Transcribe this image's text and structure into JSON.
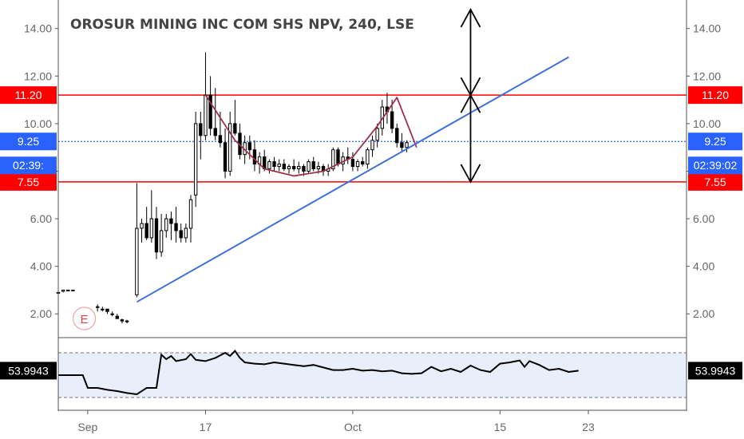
{
  "chart_data": {
    "type": "candlestick",
    "title": "OROSUR MINING INC COM SHS NPV, 240, LSE",
    "y_ticks": [
      "14.00",
      "12.00",
      "10.00",
      "8.00",
      "6.00",
      "4.00",
      "2.00"
    ],
    "y_tick_values": [
      14,
      12,
      10,
      8,
      6,
      4,
      2
    ],
    "ylim": [
      1.0,
      15.2
    ],
    "x_ticks": [
      "Sep",
      "17",
      "Oct",
      "15",
      "23"
    ],
    "x_tick_index": [
      3,
      15,
      30,
      45,
      54
    ],
    "x_range": [
      0,
      64
    ],
    "candles": [
      [
        0.0,
        2.9,
        3.0,
        2.8,
        2.9
      ],
      [
        0.5,
        2.95,
        3.0,
        2.9,
        3.0
      ],
      [
        1.0,
        3.0,
        3.0,
        3.0,
        3.0
      ],
      [
        1.5,
        3.0,
        3.0,
        3.0,
        3.0
      ],
      [
        4.0,
        2.3,
        2.4,
        2.1,
        2.3
      ],
      [
        4.5,
        2.2,
        2.3,
        2.1,
        2.2
      ],
      [
        5.0,
        2.2,
        2.2,
        2.0,
        2.1
      ],
      [
        5.5,
        2.0,
        2.1,
        1.9,
        2.0
      ],
      [
        6.0,
        1.9,
        2.0,
        1.8,
        1.8
      ],
      [
        6.5,
        1.75,
        1.8,
        1.6,
        1.7
      ],
      [
        7.0,
        1.7,
        1.75,
        1.6,
        1.7
      ],
      [
        8.0,
        2.8,
        7.5,
        2.7,
        5.6
      ],
      [
        8.5,
        5.6,
        6.0,
        5.0,
        5.8
      ],
      [
        9.0,
        5.8,
        6.5,
        5.1,
        5.2
      ],
      [
        9.5,
        5.2,
        7.2,
        5.0,
        6.0
      ],
      [
        10.0,
        6.0,
        6.5,
        4.3,
        4.6
      ],
      [
        10.5,
        4.6,
        6.2,
        4.4,
        5.5
      ],
      [
        11.0,
        5.5,
        6.2,
        5.2,
        6.0
      ],
      [
        11.5,
        6.0,
        6.3,
        5.1,
        5.8
      ],
      [
        12.0,
        5.8,
        6.5,
        5.0,
        5.5
      ],
      [
        12.5,
        5.5,
        5.8,
        5.0,
        5.2
      ],
      [
        13.0,
        5.2,
        5.8,
        5.0,
        5.6
      ],
      [
        13.5,
        5.6,
        7.0,
        5.0,
        6.8
      ],
      [
        14.0,
        7.0,
        10.5,
        6.5,
        10.0
      ],
      [
        14.5,
        10.0,
        10.5,
        8.5,
        9.5
      ],
      [
        15.0,
        9.5,
        13.0,
        9.3,
        11.2
      ],
      [
        15.5,
        11.2,
        12.0,
        9.5,
        9.8
      ],
      [
        16.0,
        9.8,
        11.5,
        9.3,
        9.5
      ],
      [
        16.5,
        9.5,
        10.5,
        9.0,
        9.2
      ],
      [
        17.0,
        9.2,
        9.8,
        7.7,
        8.0
      ],
      [
        17.5,
        8.0,
        10.5,
        7.8,
        10.0
      ],
      [
        18.0,
        10.0,
        11.0,
        9.5,
        9.6
      ],
      [
        18.5,
        9.6,
        10.0,
        8.5,
        8.7
      ],
      [
        19.0,
        8.7,
        9.5,
        8.3,
        9.2
      ],
      [
        19.5,
        9.2,
        9.5,
        8.5,
        8.9
      ],
      [
        20.0,
        8.9,
        9.3,
        8.0,
        8.3
      ],
      [
        20.5,
        8.3,
        8.8,
        7.9,
        8.6
      ],
      [
        21.0,
        8.6,
        8.9,
        8.0,
        8.1
      ],
      [
        21.5,
        8.1,
        8.5,
        7.9,
        8.4
      ],
      [
        22.0,
        8.4,
        8.6,
        8.0,
        8.2
      ],
      [
        22.5,
        8.2,
        8.5,
        8.0,
        8.3
      ],
      [
        23.0,
        8.3,
        8.5,
        8.0,
        8.1
      ],
      [
        23.5,
        8.1,
        8.3,
        7.9,
        8.2
      ],
      [
        24.0,
        8.2,
        8.5,
        8.0,
        8.1
      ],
      [
        24.5,
        8.1,
        8.4,
        7.9,
        8.2
      ],
      [
        25.0,
        8.2,
        8.3,
        7.8,
        8.0
      ],
      [
        25.5,
        8.0,
        8.5,
        7.9,
        8.4
      ],
      [
        26.0,
        8.4,
        8.6,
        8.0,
        8.1
      ],
      [
        26.5,
        8.1,
        8.4,
        7.9,
        8.2
      ],
      [
        27.0,
        8.2,
        8.3,
        7.8,
        8.0
      ],
      [
        27.5,
        8.0,
        8.3,
        7.8,
        8.1
      ],
      [
        28.0,
        8.1,
        9.0,
        8.0,
        8.9
      ],
      [
        28.5,
        8.9,
        9.0,
        8.2,
        8.3
      ],
      [
        29.0,
        8.3,
        8.8,
        8.0,
        8.6
      ],
      [
        29.5,
        8.6,
        9.0,
        8.3,
        8.5
      ],
      [
        30.0,
        8.5,
        8.8,
        8.0,
        8.2
      ],
      [
        30.5,
        8.2,
        8.5,
        8.0,
        8.4
      ],
      [
        31.0,
        8.4,
        8.6,
        8.2,
        8.3
      ],
      [
        31.5,
        8.3,
        9.0,
        8.1,
        8.9
      ],
      [
        32.0,
        8.9,
        9.5,
        8.6,
        9.3
      ],
      [
        32.5,
        9.3,
        10.0,
        9.0,
        9.8
      ],
      [
        33.0,
        9.8,
        11.0,
        9.5,
        10.7
      ],
      [
        33.5,
        10.7,
        11.3,
        10.0,
        10.5
      ],
      [
        34.0,
        10.5,
        11.0,
        9.6,
        9.8
      ],
      [
        34.5,
        9.8,
        10.0,
        9.0,
        9.2
      ],
      [
        35.0,
        9.2,
        9.6,
        8.8,
        9.0
      ],
      [
        35.5,
        9.0,
        9.3,
        8.8,
        9.2
      ]
    ],
    "cup_curve": [
      [
        15.0,
        11.2
      ],
      [
        18.0,
        9.3
      ],
      [
        21.0,
        8.1
      ],
      [
        24.0,
        7.8
      ],
      [
        27.0,
        8.0
      ],
      [
        30.0,
        8.6
      ],
      [
        32.5,
        9.9
      ],
      [
        34.5,
        11.1
      ],
      [
        36.5,
        9.0
      ]
    ],
    "trendline": [
      [
        8.0,
        2.5
      ],
      [
        52.0,
        12.8
      ]
    ],
    "resistance": 11.2,
    "support": 7.55,
    "last_price": 9.25,
    "resistance_label": "11.20",
    "support_label": "7.55",
    "last_price_label": "9.25",
    "countdown_label_left": "02:39:",
    "countdown_label_right": "02:39:02",
    "measure_arrow": {
      "x": 42.0,
      "top": 14.8,
      "mid": 11.2,
      "bottom": 7.55
    },
    "event_marker": {
      "x": 2.0,
      "letter": "E"
    },
    "oscillator": {
      "ylim": [
        0,
        100
      ],
      "upper": 85,
      "lower": 15,
      "value_label": "53.9943",
      "values": [
        [
          0,
          50
        ],
        [
          2.5,
          50
        ],
        [
          3,
          30
        ],
        [
          4,
          30
        ],
        [
          5,
          27
        ],
        [
          6,
          25
        ],
        [
          7,
          22
        ],
        [
          8,
          20
        ],
        [
          9,
          30
        ],
        [
          10,
          30
        ],
        [
          10.5,
          82
        ],
        [
          11,
          75
        ],
        [
          11.5,
          80
        ],
        [
          12,
          72
        ],
        [
          13,
          75
        ],
        [
          13.5,
          83
        ],
        [
          14,
          74
        ],
        [
          15,
          72
        ],
        [
          16,
          77
        ],
        [
          17,
          85
        ],
        [
          17.5,
          80
        ],
        [
          18,
          88
        ],
        [
          18.5,
          77
        ],
        [
          19,
          70
        ],
        [
          20,
          68
        ],
        [
          21,
          67
        ],
        [
          22,
          70
        ],
        [
          23,
          68
        ],
        [
          24,
          66
        ],
        [
          25,
          64
        ],
        [
          26,
          66
        ],
        [
          27,
          62
        ],
        [
          28,
          58
        ],
        [
          29,
          58
        ],
        [
          30,
          60
        ],
        [
          31,
          57
        ],
        [
          32,
          58
        ],
        [
          33,
          56
        ],
        [
          34,
          57
        ],
        [
          35,
          53
        ],
        [
          36,
          52
        ],
        [
          37,
          53
        ],
        [
          38,
          63
        ],
        [
          39,
          56
        ],
        [
          40,
          60
        ],
        [
          41,
          55
        ],
        [
          42,
          65
        ],
        [
          43,
          58
        ],
        [
          44,
          55
        ],
        [
          45,
          68
        ],
        [
          46,
          70
        ],
        [
          47,
          73
        ],
        [
          47.5,
          63
        ],
        [
          48,
          72
        ],
        [
          49,
          66
        ],
        [
          50,
          58
        ],
        [
          51,
          60
        ],
        [
          52,
          55
        ],
        [
          53,
          57
        ]
      ]
    }
  }
}
